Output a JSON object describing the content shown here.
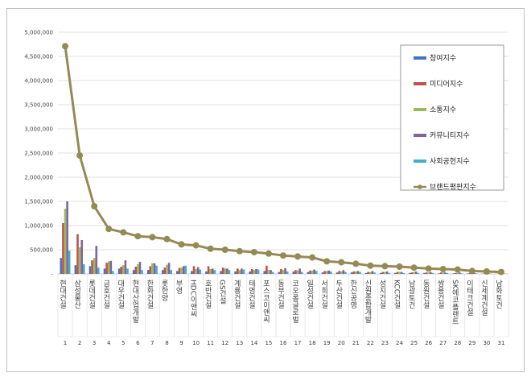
{
  "chart_data": {
    "type": "bar",
    "title": "",
    "xlabel": "",
    "ylabel": "",
    "ylim": [
      0,
      5000000
    ],
    "yticks": [
      0,
      500000,
      1000000,
      1500000,
      2000000,
      2500000,
      3000000,
      3500000,
      4000000,
      4500000,
      5000000
    ],
    "ytick_labels": [
      "-",
      "500,000",
      "1,000,000",
      "1,500,000",
      "2,000,000",
      "2,500,000",
      "3,000,000",
      "3,500,000",
      "4,000,000",
      "4,500,000",
      "5,000,000"
    ],
    "grid": true,
    "legend_position": "top-right",
    "categories": [
      "현대건설",
      "삼성물산",
      "롯데건설",
      "금호건설",
      "대우건설",
      "현대산업개발",
      "한화건설",
      "롯한양",
      "부영",
      "HDC이앤씨",
      "호반건설",
      "GS건설",
      "계룡건설",
      "태영건설",
      "포스코이앤씨",
      "동부건설",
      "코오롱글로벌",
      "일성건설",
      "서희건설",
      "두산건설",
      "한신공영",
      "신원종합개발",
      "성지건설",
      "KCC건설",
      "남광토건",
      "동원건설",
      "쌍용건설",
      "SK에코플랜트",
      "이테크건설",
      "신세계건설",
      "남화토건"
    ],
    "ranks": [
      "1",
      "2",
      "3",
      "4",
      "5",
      "6",
      "7",
      "8",
      "9",
      "10",
      "11",
      "12",
      "13",
      "14",
      "15",
      "16",
      "17",
      "18",
      "19",
      "20",
      "21",
      "22",
      "23",
      "24",
      "25",
      "26",
      "27",
      "28",
      "29",
      "30",
      "31"
    ],
    "series": [
      {
        "name": "참여지수",
        "kind": "bar",
        "color": "#4472c4",
        "values": [
          330000,
          180000,
          160000,
          110000,
          110000,
          80000,
          80000,
          80000,
          60000,
          60000,
          50000,
          60000,
          50000,
          50000,
          60000,
          40000,
          50000,
          40000,
          30000,
          30000,
          30000,
          20000,
          20000,
          20000,
          20000,
          20000,
          10000,
          10000,
          10000,
          5000,
          5000
        ]
      },
      {
        "name": "미디어지수",
        "kind": "bar",
        "color": "#c0504d",
        "values": [
          1050000,
          820000,
          280000,
          230000,
          150000,
          150000,
          160000,
          130000,
          120000,
          160000,
          160000,
          130000,
          110000,
          100000,
          170000,
          100000,
          80000,
          70000,
          60000,
          60000,
          50000,
          40000,
          40000,
          40000,
          30000,
          30000,
          30000,
          20000,
          20000,
          10000,
          10000
        ]
      },
      {
        "name": "소통지수",
        "kind": "bar",
        "color": "#9bbb59",
        "values": [
          1350000,
          550000,
          330000,
          260000,
          180000,
          200000,
          220000,
          190000,
          130000,
          100000,
          100000,
          110000,
          80000,
          80000,
          80000,
          80000,
          70000,
          70000,
          60000,
          50000,
          50000,
          40000,
          40000,
          40000,
          40000,
          30000,
          30000,
          20000,
          20000,
          10000,
          10000
        ]
      },
      {
        "name": "커뮤니티지수",
        "kind": "bar",
        "color": "#8064a2",
        "values": [
          1500000,
          700000,
          580000,
          270000,
          280000,
          250000,
          220000,
          230000,
          160000,
          140000,
          110000,
          110000,
          110000,
          100000,
          80000,
          120000,
          110000,
          90000,
          70000,
          80000,
          60000,
          60000,
          50000,
          40000,
          50000,
          40000,
          30000,
          30000,
          20000,
          10000,
          10000
        ]
      },
      {
        "name": "사회공헌지수",
        "kind": "bar",
        "color": "#4bacc6",
        "values": [
          480000,
          200000,
          130000,
          60000,
          110000,
          80000,
          170000,
          80000,
          170000,
          90000,
          80000,
          80000,
          90000,
          90000,
          40000,
          50000,
          40000,
          60000,
          50000,
          40000,
          40000,
          30000,
          20000,
          20000,
          20000,
          20000,
          20000,
          10000,
          10000,
          5000,
          5000
        ]
      },
      {
        "name": "브랜드평판지수",
        "kind": "line",
        "color": "#948a54",
        "values": [
          4710000,
          2450000,
          1400000,
          930000,
          860000,
          780000,
          760000,
          720000,
          610000,
          590000,
          520000,
          500000,
          470000,
          450000,
          420000,
          380000,
          360000,
          340000,
          260000,
          240000,
          210000,
          170000,
          160000,
          150000,
          130000,
          110000,
          100000,
          90000,
          60000,
          50000,
          40000
        ]
      }
    ]
  }
}
